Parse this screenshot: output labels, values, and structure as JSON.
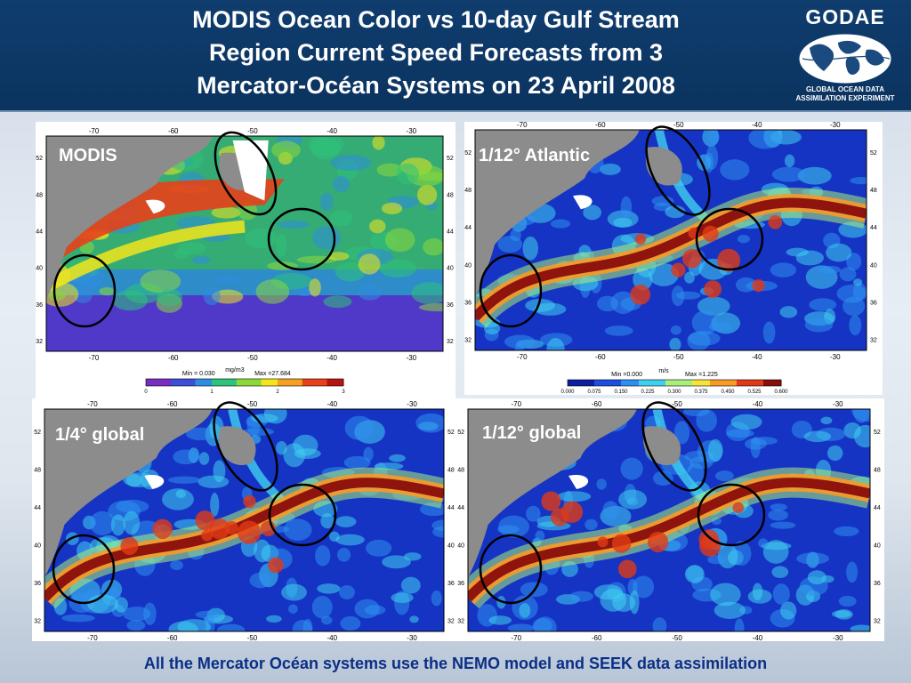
{
  "header": {
    "title_lines": [
      "MODIS Ocean Color vs 10-day Gulf Stream",
      "Region Current Speed Forecasts from 3",
      "Mercator-Océan Systems on 23 April 2008"
    ]
  },
  "logo": {
    "name": "GODAE",
    "subtitle_lines": [
      "GLOBAL OCEAN DATA",
      "ASSIMILATION EXPERIMENT"
    ]
  },
  "panels": [
    {
      "label": "MODIS",
      "longitude_ticks": [
        "-70",
        "-60",
        "-50",
        "-40",
        "-30"
      ],
      "latitude_ticks": [
        "52",
        "48",
        "44",
        "40",
        "36",
        "32"
      ],
      "colorbar": {
        "min_text": "Min = 0.030",
        "unit": "mg/m3",
        "max_text": "Max =27.684",
        "ticks": [
          "0",
          "1",
          "2",
          "3"
        ]
      }
    },
    {
      "label": "1/12° Atlantic",
      "longitude_ticks": [
        "-70",
        "-60",
        "-50",
        "-40",
        "-30"
      ],
      "latitude_ticks": [
        "52",
        "48",
        "44",
        "40",
        "36",
        "32"
      ],
      "colorbar": {
        "min_text": "Min =0.000",
        "unit": "m/s",
        "max_text": "Max =1.225",
        "ticks": [
          "0.000",
          "0.075",
          "0.150",
          "0.225",
          "0.300",
          "0.375",
          "0.450",
          "0.525",
          "0.600"
        ]
      }
    },
    {
      "label": "1/4° global",
      "longitude_ticks": [
        "-70",
        "-60",
        "-50",
        "-40",
        "-30"
      ],
      "latitude_ticks": [
        "52",
        "48",
        "44",
        "40",
        "36",
        "32"
      ]
    },
    {
      "label": "1/12° global",
      "longitude_ticks": [
        "-70",
        "-60",
        "-50",
        "-40",
        "-30"
      ],
      "latitude_ticks": [
        "52",
        "48",
        "44",
        "40",
        "36",
        "32"
      ]
    }
  ],
  "footer": "All the Mercator Océan systems use the NEMO model and SEEK data assimilation",
  "colors": {
    "header_bg": "#0f3d6e",
    "land": "#8c8c8c",
    "modis_scale": [
      "#7a2cbf",
      "#3d4fd6",
      "#2f8de0",
      "#2ec27a",
      "#8bd83a",
      "#f2e51c",
      "#f5a020",
      "#e8401a",
      "#b8140f"
    ],
    "speed_scale": [
      "#0d1f9e",
      "#1d4ee0",
      "#2f8ff0",
      "#3fd0f0",
      "#a9f07a",
      "#f7e43a",
      "#f79a26",
      "#e03a17",
      "#8a0d0d"
    ],
    "footer_text": "#0b2f86"
  }
}
